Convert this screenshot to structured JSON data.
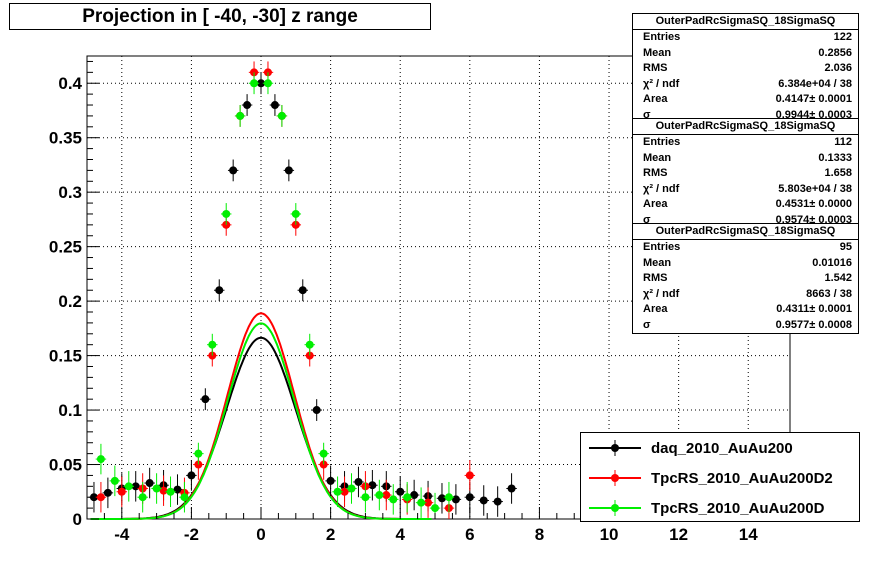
{
  "title": "Projection in [ -40, -30] z range",
  "stats_boxes": [
    {
      "name": "OuterPadRcSigmaSQ_18SigmaSQ",
      "rows": [
        [
          "Entries",
          "122"
        ],
        [
          "Mean",
          "0.2856"
        ],
        [
          "RMS",
          "2.036"
        ],
        [
          "χ² / ndf",
          "6.384e+04 / 38"
        ],
        [
          "Area",
          "0.4147± 0.0001"
        ],
        [
          "σ",
          "0.9944± 0.0003"
        ]
      ]
    },
    {
      "name": "OuterPadRcSigmaSQ_18SigmaSQ",
      "rows": [
        [
          "Entries",
          "112"
        ],
        [
          "Mean",
          "0.1333"
        ],
        [
          "RMS",
          "1.658"
        ],
        [
          "χ² / ndf",
          "5.803e+04 / 38"
        ],
        [
          "Area",
          "0.4531± 0.0000"
        ],
        [
          "σ",
          "0.9574± 0.0003"
        ]
      ]
    },
    {
      "name": "OuterPadRcSigmaSQ_18SigmaSQ",
      "rows": [
        [
          "Entries",
          "95"
        ],
        [
          "Mean",
          "0.01016"
        ],
        [
          "RMS",
          "1.542"
        ],
        [
          "χ² / ndf",
          "8663 / 38"
        ],
        [
          "Area",
          "0.4311± 0.0001"
        ],
        [
          "σ",
          "0.9577± 0.0008"
        ]
      ]
    }
  ],
  "legend": [
    {
      "label": "daq_2010_AuAu200",
      "color": "#000000"
    },
    {
      "label": "TpcRS_2010_AuAu200D2",
      "color": "#ff0000"
    },
    {
      "label": "TpcRS_2010_AuAu200D",
      "color": "#00ee00"
    }
  ],
  "chart_data": {
    "type": "scatter",
    "title": "Projection in [ -40, -30] z range",
    "xlim": [
      -5,
      15.2
    ],
    "ylim": [
      0,
      0.425
    ],
    "x_ticks": [
      -4,
      -2,
      0,
      2,
      4,
      6,
      8,
      10,
      12,
      14
    ],
    "y_ticks": [
      0,
      0.05,
      0.1,
      0.15,
      0.2,
      0.25,
      0.3,
      0.35,
      0.4
    ],
    "y_tick_labels": [
      "0",
      "0.05",
      "0.1",
      "0.15",
      "0.2",
      "0.25",
      "0.3",
      "0.35",
      "0.4"
    ],
    "grid": true,
    "series": [
      {
        "name": "daq_2010_AuAu200",
        "color": "#000000",
        "fit_sigma": 0.9944,
        "fit_amp": 0.4147,
        "x_range": [
          -4.9,
          7.4
        ],
        "x": [
          -4.8,
          -4.4,
          -4.0,
          -3.6,
          -3.2,
          -2.8,
          -2.4,
          -2.0,
          -1.6,
          -1.2,
          -0.8,
          -0.4,
          0.0,
          0.4,
          0.8,
          1.2,
          1.6,
          2.0,
          2.4,
          2.8,
          3.2,
          3.6,
          4.0,
          4.4,
          4.8,
          5.2,
          5.6,
          6.0,
          6.4,
          6.8,
          7.2
        ],
        "values": [
          0.02,
          0.024,
          0.028,
          0.03,
          0.033,
          0.031,
          0.027,
          0.04,
          0.11,
          0.21,
          0.32,
          0.38,
          0.4,
          0.38,
          0.32,
          0.21,
          0.1,
          0.035,
          0.03,
          0.034,
          0.031,
          0.03,
          0.025,
          0.022,
          0.021,
          0.019,
          0.018,
          0.02,
          0.017,
          0.016,
          0.028
        ]
      },
      {
        "name": "TpcRS_2010_AuAu200D2",
        "color": "#ff0000",
        "fit_sigma": 0.9574,
        "fit_amp": 0.4531,
        "x_range": [
          -4.9,
          6.3
        ],
        "x": [
          -4.6,
          -4.0,
          -3.4,
          -2.8,
          -2.2,
          -1.8,
          -1.4,
          -1.0,
          -0.6,
          -0.2,
          0.2,
          0.6,
          1.0,
          1.4,
          1.8,
          2.4,
          3.0,
          3.6,
          4.2,
          4.8,
          5.4,
          6.0
        ],
        "values": [
          0.02,
          0.025,
          0.028,
          0.026,
          0.024,
          0.05,
          0.15,
          0.27,
          0.37,
          0.41,
          0.41,
          0.37,
          0.27,
          0.15,
          0.05,
          0.025,
          0.03,
          0.022,
          0.018,
          0.015,
          0.01,
          0.04
        ]
      },
      {
        "name": "TpcRS_2010_AuAu200D",
        "color": "#00ee00",
        "fit_sigma": 0.9577,
        "fit_amp": 0.4311,
        "x_range": [
          -4.9,
          5.6
        ],
        "x": [
          -4.6,
          -4.2,
          -3.8,
          -3.4,
          -3.0,
          -2.6,
          -2.2,
          -1.8,
          -1.4,
          -1.0,
          -0.6,
          -0.2,
          0.2,
          0.6,
          1.0,
          1.4,
          1.8,
          2.2,
          2.6,
          3.0,
          3.4,
          3.8,
          4.2,
          4.6,
          5.0,
          5.4
        ],
        "values": [
          0.055,
          0.035,
          0.03,
          0.02,
          0.028,
          0.025,
          0.02,
          0.06,
          0.16,
          0.28,
          0.37,
          0.4,
          0.4,
          0.37,
          0.28,
          0.16,
          0.06,
          0.025,
          0.028,
          0.02,
          0.022,
          0.018,
          0.02,
          0.015,
          0.01,
          0.02
        ]
      }
    ]
  }
}
